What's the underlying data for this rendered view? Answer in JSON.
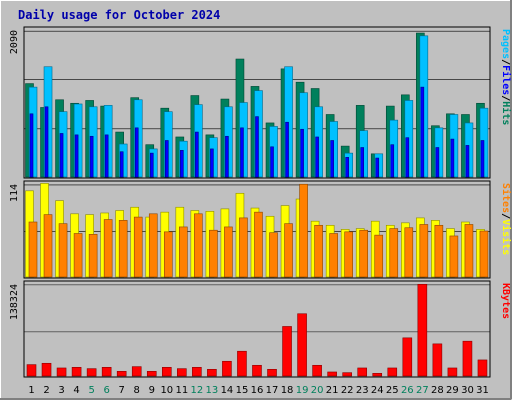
{
  "chart_data": {
    "type": "bar",
    "title": "Daily usage for October 2024",
    "colors": {
      "background": "#c0c0c0",
      "panel": "#c0c0c0",
      "hits": "#00805c",
      "files": "#00c0ff",
      "pages": "#0000ff",
      "visits": "#ffff00",
      "sites": "#ff8000",
      "kbytes": "#ff0000",
      "title": "#0000aa",
      "weekend_day": "#00805c",
      "weekday": "#000000"
    },
    "x_labels": [
      "1",
      "2",
      "3",
      "4",
      "5",
      "6",
      "7",
      "8",
      "9",
      "10",
      "11",
      "12",
      "13",
      "14",
      "15",
      "16",
      "17",
      "18",
      "19",
      "20",
      "21",
      "22",
      "23",
      "24",
      "25",
      "26",
      "27",
      "28",
      "29",
      "30",
      "31"
    ],
    "weekend_days": [
      "5",
      "6",
      "12",
      "13",
      "19",
      "20",
      "26",
      "27"
    ],
    "panels": [
      {
        "name": "hits-files-pages",
        "ymax_label": "2090",
        "ymax": 2090,
        "side_labels": [
          {
            "text": "Hits",
            "color": "#00805c"
          },
          {
            "text": "Files",
            "color": "#0000ff"
          },
          {
            "text": "Pages",
            "color": "#00c0ff"
          }
        ],
        "series": [
          {
            "name": "Hits",
            "values": [
              1330,
              990,
              1100,
              1050,
              1090,
              1010,
              640,
              1130,
              460,
              980,
              570,
              1160,
              600,
              1110,
              1680,
              1290,
              770,
              1540,
              1350,
              1260,
              890,
              440,
              1020,
              330,
              1010,
              1170,
              2050,
              730,
              900,
              890,
              1050
            ]
          },
          {
            "name": "Files",
            "values": [
              1280,
              1570,
              930,
              1040,
              1000,
              1020,
              470,
              1100,
              400,
              930,
              510,
              1030,
              560,
              1000,
              1060,
              1230,
              720,
              1570,
              1200,
              1000,
              790,
              340,
              660,
              330,
              810,
              1090,
              2010,
              700,
              890,
              770,
              980
            ]
          },
          {
            "name": "Pages",
            "values": [
              900,
              1000,
              620,
              600,
              580,
              600,
              360,
              700,
              340,
              520,
              380,
              640,
              400,
              580,
              700,
              860,
              430,
              780,
              680,
              570,
              520,
              280,
              420,
              270,
              460,
              560,
              1280,
              420,
              540,
              450,
              520
            ]
          }
        ]
      },
      {
        "name": "visits-sites",
        "ymax_label": "114",
        "ymax": 114,
        "side_labels": [
          {
            "text": "Visits",
            "color": "#ffff00"
          },
          {
            "text": "Sites",
            "color": "#ff8000"
          }
        ],
        "series": [
          {
            "name": "Visits",
            "values": [
              105,
              114,
              93,
              77,
              76,
              78,
              81,
              85,
              73,
              79,
              85,
              81,
              80,
              83,
              102,
              84,
              74,
              87,
              95,
              68,
              63,
              58,
              59,
              68,
              63,
              66,
              72,
              69,
              59,
              67,
              58
            ]
          },
          {
            "name": "Sites",
            "values": [
              67,
              76,
              65,
              53,
              52,
              70,
              69,
              73,
              77,
              55,
              61,
              77,
              57,
              61,
              72,
              79,
              54,
              65,
              113,
              63,
              53,
              55,
              57,
              51,
              59,
              60,
              64,
              63,
              50,
              64,
              56
            ]
          }
        ]
      },
      {
        "name": "kbytes",
        "ymax_label": "138324",
        "ymax": 138324,
        "side_labels": [
          {
            "text": "KBytes",
            "color": "#ff0000"
          }
        ],
        "series": [
          {
            "name": "KBytes",
            "values": [
              17000,
              19000,
              12000,
              13000,
              11000,
              13000,
              7000,
              14000,
              7000,
              13000,
              11000,
              13000,
              10000,
              22000,
              37000,
              16000,
              10000,
              74000,
              93000,
              16000,
              6000,
              5000,
              12000,
              4000,
              12000,
              57000,
              137000,
              48000,
              12000,
              52000,
              24000
            ]
          }
        ]
      }
    ]
  }
}
